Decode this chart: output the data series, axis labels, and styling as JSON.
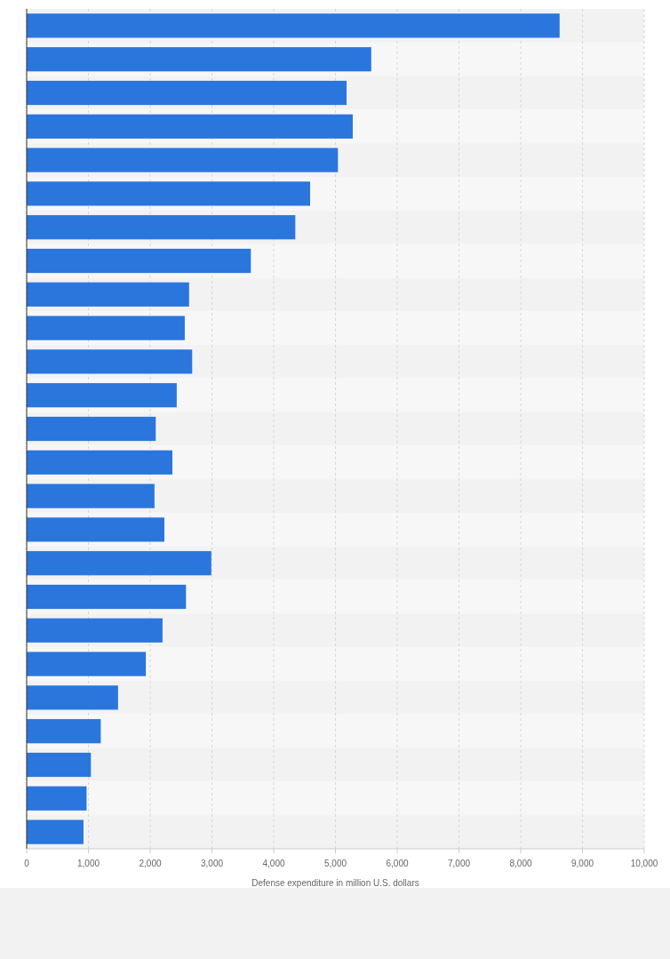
{
  "chart_data": {
    "type": "bar",
    "orientation": "horizontal",
    "xlabel": "Defense expenditure in million U.S. dollars",
    "categories": [
      null,
      null,
      null,
      null,
      null,
      null,
      null,
      null,
      null,
      null,
      null,
      null,
      null,
      null,
      null,
      null,
      null,
      null,
      null,
      null,
      null,
      null,
      null,
      null,
      null
    ],
    "values": [
      8630,
      5580,
      5180,
      5280,
      5040,
      4590,
      4350,
      3630,
      2630,
      2560,
      2680,
      2430,
      2090,
      2360,
      2070,
      2230,
      2990,
      2580,
      2200,
      1930,
      1480,
      1200,
      1040,
      970,
      920
    ],
    "color": "#2a76dd",
    "xlim": [
      0,
      10000
    ],
    "xticks": [
      0,
      {
        "value": 1000,
        "label": "1,000"
      },
      {
        "value": 2000,
        "label": "2,000"
      },
      {
        "value": 3000,
        "label": "3,000"
      },
      {
        "value": 4000,
        "label": "4,000"
      },
      {
        "value": 5000,
        "label": "5,000"
      },
      {
        "value": 6000,
        "label": "6,000"
      },
      {
        "value": 7000,
        "label": "7,000"
      },
      {
        "value": 8000,
        "label": "8,000"
      },
      {
        "value": 9000,
        "label": "9,000"
      },
      {
        "value": 10000,
        "label": "10,000"
      }
    ],
    "grid": "x"
  }
}
